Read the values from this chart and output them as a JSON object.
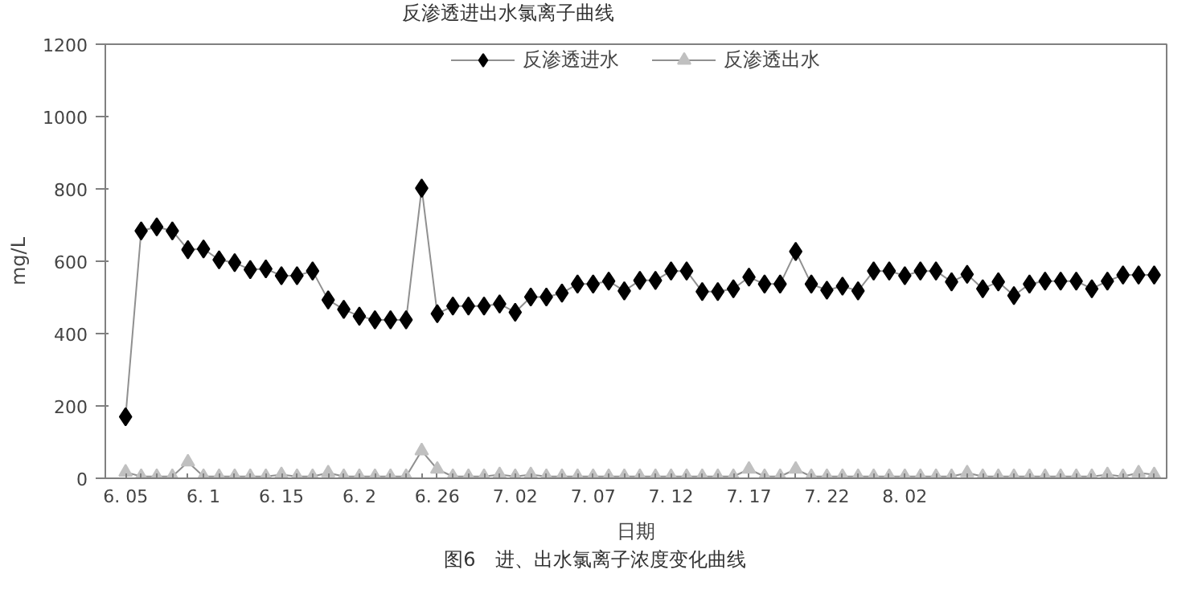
{
  "chart_data": {
    "type": "line",
    "title": "反渗透进出水氯离子曲线",
    "xlabel": "日期",
    "ylabel": "mg/L",
    "annotations": [
      "图6　进、出水氯离子浓度变化曲线"
    ],
    "categories": [
      "6. 05",
      null,
      null,
      null,
      null,
      "6. 1",
      null,
      null,
      null,
      null,
      "6. 15",
      null,
      null,
      null,
      null,
      "6. 2",
      null,
      null,
      null,
      null,
      "6. 26",
      null,
      null,
      null,
      null,
      "7. 02",
      null,
      null,
      null,
      null,
      "7. 07",
      null,
      null,
      null,
      null,
      "7. 12",
      null,
      null,
      null,
      null,
      "7. 17",
      null,
      null,
      null,
      null,
      "7. 22",
      null,
      null,
      null,
      null,
      "8. 02",
      null,
      null,
      null,
      null,
      null,
      null,
      null,
      null,
      null,
      null,
      null,
      null,
      null,
      null,
      null,
      null
    ],
    "series": [
      {
        "name": "反渗透进水",
        "color": "#000000",
        "marker": "diamond",
        "values": [
          170,
          684,
          695,
          684,
          632,
          634,
          604,
          596,
          577,
          579,
          560,
          560,
          573,
          493,
          467,
          448,
          438,
          438,
          438,
          802,
          455,
          476,
          476,
          476,
          482,
          459,
          501,
          501,
          512,
          537,
          537,
          545,
          518,
          547,
          547,
          573,
          573,
          516,
          516,
          524,
          556,
          537,
          537,
          627,
          537,
          520,
          531,
          518,
          573,
          573,
          560,
          573,
          573,
          543,
          564,
          524,
          543,
          505,
          537,
          545,
          545,
          545,
          524,
          545,
          562,
          562,
          562
        ]
      },
      {
        "name": "反渗透出水",
        "color": "#c0c0c0",
        "marker": "triangle",
        "values": [
          17,
          5,
          5,
          5,
          45,
          5,
          5,
          5,
          5,
          5,
          10,
          5,
          5,
          15,
          5,
          5,
          5,
          5,
          5,
          76,
          25,
          5,
          5,
          5,
          10,
          5,
          10,
          5,
          5,
          5,
          5,
          5,
          5,
          5,
          5,
          5,
          5,
          5,
          5,
          5,
          25,
          5,
          5,
          25,
          5,
          5,
          5,
          5,
          5,
          5,
          5,
          5,
          5,
          5,
          15,
          5,
          5,
          5,
          5,
          5,
          5,
          5,
          5,
          10,
          5,
          15,
          10
        ]
      }
    ],
    "ylim": [
      0,
      1200
    ],
    "yticks": [
      0,
      200,
      400,
      600,
      800,
      1000,
      1200
    ],
    "grid": false,
    "legend": "top",
    "line_style": "solid"
  }
}
